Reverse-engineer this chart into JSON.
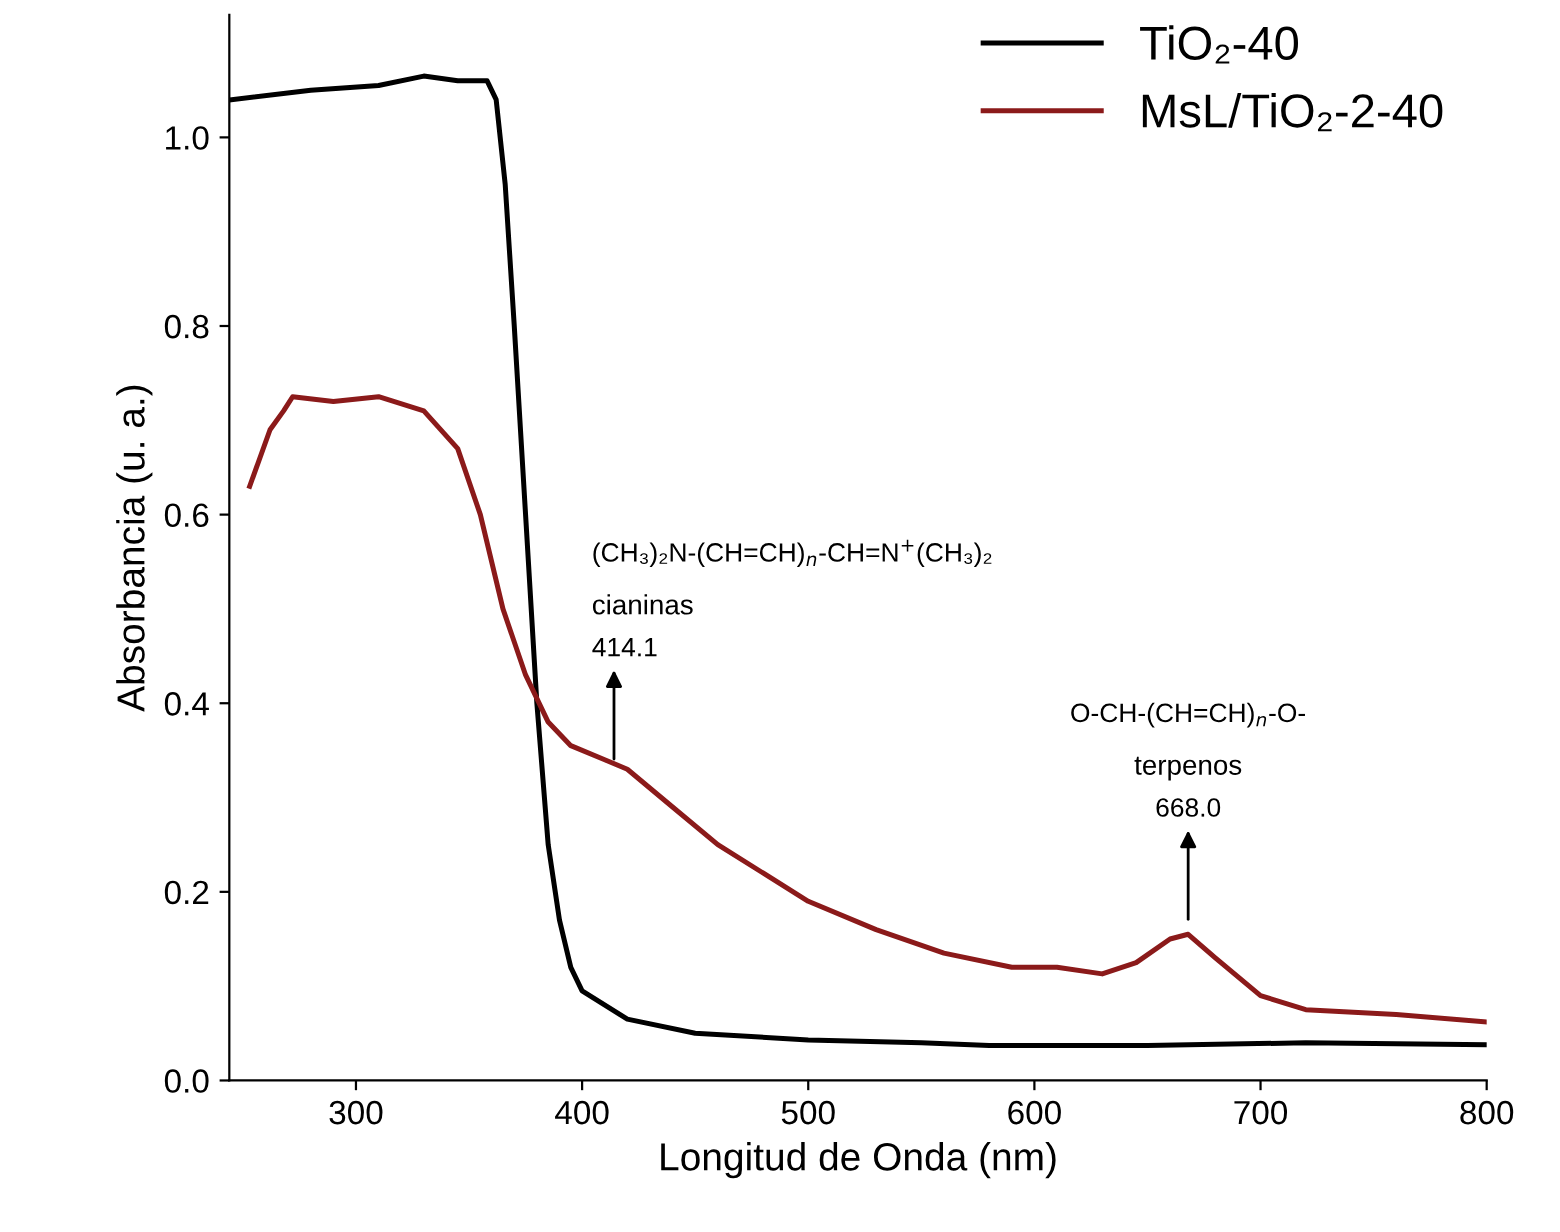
{
  "chart_data": {
    "type": "line",
    "xlabel": "Longitud de Onda (nm)",
    "ylabel": "Absorbancia (u. a.)",
    "xlim": [
      244,
      800
    ],
    "xticks": [
      300,
      400,
      500,
      600,
      700,
      800
    ],
    "ylim": [
      0,
      1.13
    ],
    "yticks": [
      {
        "value": 0,
        "label": "0.0"
      },
      0.2,
      0.4,
      0.6,
      0.8,
      {
        "value": 1,
        "label": "1.0"
      }
    ],
    "grid": false,
    "legend": "top right",
    "marker": "none",
    "line_style": "solid",
    "series": [
      {
        "name": "TiO₂-40",
        "color": "#000000",
        "x": [
          245,
          280,
          310,
          330,
          345,
          358,
          362,
          366,
          370,
          375,
          380,
          385,
          390,
          395,
          400,
          420,
          450,
          500,
          550,
          580,
          650,
          720,
          800
        ],
        "values": [
          1.04,
          1.05,
          1.055,
          1.065,
          1.06,
          1.06,
          1.04,
          0.95,
          0.8,
          0.6,
          0.4,
          0.25,
          0.17,
          0.12,
          0.095,
          0.065,
          0.05,
          0.043,
          0.04,
          0.037,
          0.037,
          0.04,
          0.038
        ]
      },
      {
        "name": "MsL/TiO₂-2-40",
        "color": "#8b1a1a",
        "x": [
          253,
          262,
          268,
          272,
          290,
          310,
          330,
          345,
          355,
          365,
          375,
          385,
          395,
          410,
          420,
          440,
          460,
          480,
          500,
          530,
          560,
          590,
          610,
          630,
          645,
          660,
          668,
          680,
          700,
          720,
          760,
          800
        ],
        "values": [
          0.63,
          0.69,
          0.71,
          0.725,
          0.72,
          0.725,
          0.71,
          0.67,
          0.6,
          0.5,
          0.43,
          0.38,
          0.355,
          0.34,
          0.33,
          0.29,
          0.25,
          0.22,
          0.19,
          0.16,
          0.135,
          0.12,
          0.12,
          0.113,
          0.125,
          0.15,
          0.155,
          0.13,
          0.09,
          0.075,
          0.07,
          0.062
        ]
      }
    ],
    "annotations": [
      {
        "text": "414.1",
        "x": 414.1,
        "y": 0.335
      },
      "cianinas",
      "(CH₃)₂N-(CH=CH)$_{n}$-CH=N$^{+}$(CH₃)₂",
      {
        "text": "668.0",
        "x": 668.0,
        "y": 0.165
      },
      "terpenos",
      "O-CH-(CH=CH)$_{n}$-O-"
    ]
  }
}
